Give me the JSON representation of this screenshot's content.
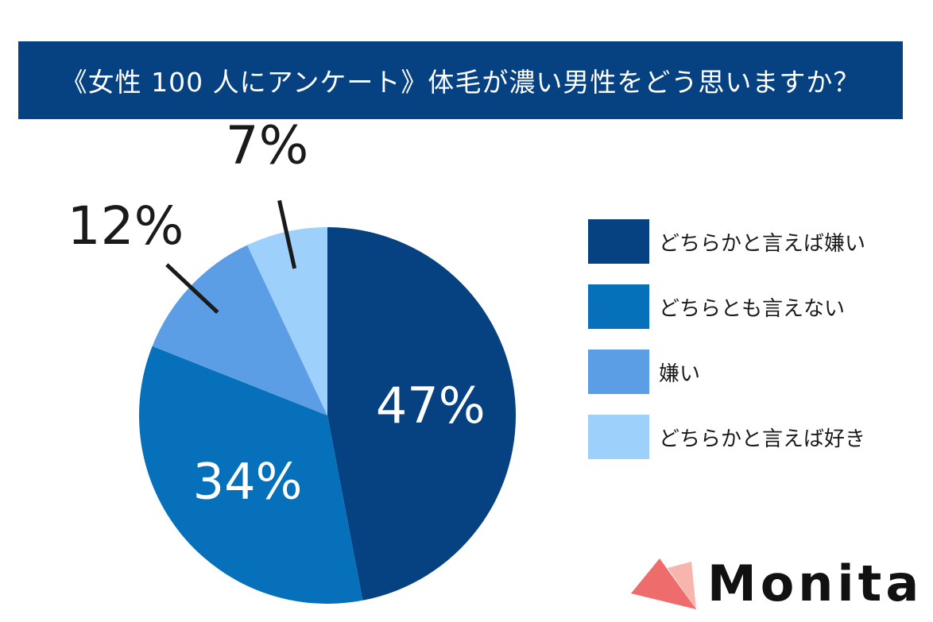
{
  "title": "《女性 100 人にアンケート》体毛が濃い男性をどう思いますか？",
  "chart_data": {
    "type": "pie",
    "categories": [
      "どちらかと言えば嫌い",
      "どちらとも言えない",
      "嫌い",
      "どちらかと言えば好き"
    ],
    "values": [
      47,
      34,
      12,
      7
    ],
    "data_labels": [
      "47%",
      "34%",
      "12%",
      "7%"
    ],
    "colors": [
      "#064182",
      "#0670BA",
      "#5C9EE6",
      "#9DD1FC"
    ],
    "legend_position": "right"
  },
  "legend": {
    "items": [
      {
        "label": "どちらかと言えば嫌い",
        "color": "#064182"
      },
      {
        "label": "どちらとも言えない",
        "color": "#0670BA"
      },
      {
        "label": "嫌い",
        "color": "#5C9EE6"
      },
      {
        "label": "どちらかと言えば好き",
        "color": "#9DD1FC"
      }
    ]
  },
  "logo": {
    "text": "Monita",
    "accent_color": "#EE6C6C"
  }
}
